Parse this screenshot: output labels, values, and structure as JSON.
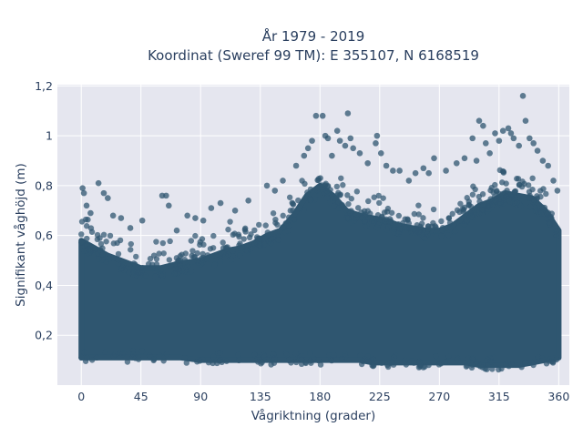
{
  "chart_data": {
    "type": "scatter",
    "title_line1": "År 1979 - 2019",
    "title_line2": "Koordinat (Sweref 99 TM): E 355107, N 6168519",
    "xlabel": "Vågriktning (grader)",
    "ylabel": "Signifikant våghöjd (m)",
    "xlim": [
      -18,
      368
    ],
    "ylim": [
      0.0,
      1.205
    ],
    "x_ticks": [
      0,
      45,
      90,
      135,
      180,
      225,
      270,
      315,
      360
    ],
    "x_tick_labels": [
      "0",
      "45",
      "90",
      "135",
      "180",
      "225",
      "270",
      "315",
      "360"
    ],
    "y_ticks": [
      0.2,
      0.4,
      0.6,
      0.8,
      1.0,
      1.2
    ],
    "y_tick_labels": [
      "0,2",
      "0,4",
      "0,6",
      "0,8",
      "1",
      "1,2"
    ],
    "grid": true,
    "colors": {
      "marker": "#2f5670",
      "plot_bg": "#e5e6ef",
      "grid": "#ffffff",
      "text": "#2a3f5f"
    },
    "dense_band": {
      "x": [
        0,
        10,
        20,
        30,
        45,
        60,
        75,
        90,
        100,
        110,
        120,
        130,
        140,
        150,
        160,
        170,
        180,
        190,
        200,
        210,
        220,
        230,
        240,
        250,
        260,
        270,
        280,
        290,
        300,
        310,
        320,
        330,
        340,
        350,
        360
      ],
      "lower": [
        0.11,
        0.11,
        0.11,
        0.11,
        0.11,
        0.11,
        0.11,
        0.1,
        0.1,
        0.1,
        0.1,
        0.1,
        0.1,
        0.1,
        0.1,
        0.1,
        0.1,
        0.1,
        0.1,
        0.1,
        0.09,
        0.09,
        0.09,
        0.09,
        0.09,
        0.09,
        0.09,
        0.09,
        0.08,
        0.08,
        0.08,
        0.08,
        0.09,
        0.1,
        0.11
      ],
      "upper": [
        0.58,
        0.55,
        0.52,
        0.5,
        0.47,
        0.47,
        0.49,
        0.5,
        0.52,
        0.54,
        0.55,
        0.57,
        0.6,
        0.62,
        0.68,
        0.76,
        0.8,
        0.76,
        0.7,
        0.68,
        0.67,
        0.66,
        0.64,
        0.63,
        0.62,
        0.62,
        0.64,
        0.68,
        0.72,
        0.74,
        0.77,
        0.76,
        0.75,
        0.7,
        0.62
      ]
    },
    "outliers": [
      {
        "x": 1,
        "y": 0.79
      },
      {
        "x": 2,
        "y": 0.77
      },
      {
        "x": 4,
        "y": 0.72
      },
      {
        "x": 7,
        "y": 0.69
      },
      {
        "x": 13,
        "y": 0.81
      },
      {
        "x": 17,
        "y": 0.77
      },
      {
        "x": 20,
        "y": 0.75
      },
      {
        "x": 24,
        "y": 0.68
      },
      {
        "x": 30,
        "y": 0.67
      },
      {
        "x": 37,
        "y": 0.63
      },
      {
        "x": 46,
        "y": 0.66
      },
      {
        "x": 61,
        "y": 0.76
      },
      {
        "x": 64,
        "y": 0.76
      },
      {
        "x": 66,
        "y": 0.72
      },
      {
        "x": 72,
        "y": 0.62
      },
      {
        "x": 80,
        "y": 0.68
      },
      {
        "x": 86,
        "y": 0.67
      },
      {
        "x": 92,
        "y": 0.66
      },
      {
        "x": 98,
        "y": 0.71
      },
      {
        "x": 105,
        "y": 0.73
      },
      {
        "x": 116,
        "y": 0.7
      },
      {
        "x": 126,
        "y": 0.74
      },
      {
        "x": 140,
        "y": 0.8
      },
      {
        "x": 146,
        "y": 0.78
      },
      {
        "x": 152,
        "y": 0.82
      },
      {
        "x": 162,
        "y": 0.88
      },
      {
        "x": 168,
        "y": 0.92
      },
      {
        "x": 171,
        "y": 0.95
      },
      {
        "x": 174,
        "y": 0.98
      },
      {
        "x": 177,
        "y": 1.08
      },
      {
        "x": 182,
        "y": 1.08
      },
      {
        "x": 184,
        "y": 1.0
      },
      {
        "x": 186,
        "y": 0.99
      },
      {
        "x": 189,
        "y": 0.92
      },
      {
        "x": 193,
        "y": 1.02
      },
      {
        "x": 195,
        "y": 0.98
      },
      {
        "x": 199,
        "y": 0.96
      },
      {
        "x": 201,
        "y": 1.09
      },
      {
        "x": 203,
        "y": 0.99
      },
      {
        "x": 205,
        "y": 0.95
      },
      {
        "x": 210,
        "y": 0.93
      },
      {
        "x": 216,
        "y": 0.89
      },
      {
        "x": 222,
        "y": 0.97
      },
      {
        "x": 223,
        "y": 1.0
      },
      {
        "x": 226,
        "y": 0.93
      },
      {
        "x": 230,
        "y": 0.88
      },
      {
        "x": 235,
        "y": 0.86
      },
      {
        "x": 240,
        "y": 0.86
      },
      {
        "x": 247,
        "y": 0.82
      },
      {
        "x": 252,
        "y": 0.85
      },
      {
        "x": 258,
        "y": 0.87
      },
      {
        "x": 262,
        "y": 0.85
      },
      {
        "x": 266,
        "y": 0.91
      },
      {
        "x": 275,
        "y": 0.86
      },
      {
        "x": 283,
        "y": 0.89
      },
      {
        "x": 289,
        "y": 0.91
      },
      {
        "x": 295,
        "y": 0.99
      },
      {
        "x": 298,
        "y": 0.9
      },
      {
        "x": 300,
        "y": 1.06
      },
      {
        "x": 303,
        "y": 1.04
      },
      {
        "x": 305,
        "y": 0.97
      },
      {
        "x": 308,
        "y": 0.93
      },
      {
        "x": 312,
        "y": 1.01
      },
      {
        "x": 315,
        "y": 0.98
      },
      {
        "x": 318,
        "y": 1.02
      },
      {
        "x": 322,
        "y": 1.03
      },
      {
        "x": 324,
        "y": 1.01
      },
      {
        "x": 326,
        "y": 0.99
      },
      {
        "x": 330,
        "y": 0.96
      },
      {
        "x": 333,
        "y": 1.16
      },
      {
        "x": 335,
        "y": 1.06
      },
      {
        "x": 338,
        "y": 0.99
      },
      {
        "x": 341,
        "y": 0.97
      },
      {
        "x": 344,
        "y": 0.94
      },
      {
        "x": 348,
        "y": 0.9
      },
      {
        "x": 352,
        "y": 0.88
      },
      {
        "x": 356,
        "y": 0.82
      },
      {
        "x": 359,
        "y": 0.78
      }
    ]
  }
}
